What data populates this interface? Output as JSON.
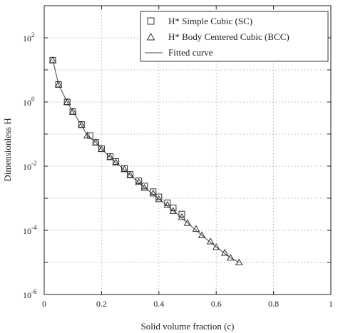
{
  "chart_data": {
    "type": "scatter",
    "title": "",
    "xlabel": "Solid volume fraction (c)",
    "ylabel": "Dimensionless H",
    "xlim": [
      0,
      1
    ],
    "ylim": [
      1e-06,
      1000
    ],
    "yscale": "log",
    "grid": true,
    "legend_position": "top-right",
    "x_ticks": [
      "0",
      "0.2",
      "0.4",
      "0.6",
      "0.8",
      "1"
    ],
    "x_tick_values": [
      0,
      0.2,
      0.4,
      0.6,
      0.8,
      1
    ],
    "y_ticks": [
      {
        "base": "10",
        "exp": "-6",
        "value": 1e-06
      },
      {
        "base": "10",
        "exp": "-4",
        "value": 0.0001
      },
      {
        "base": "10",
        "exp": "-2",
        "value": 0.01
      },
      {
        "base": "10",
        "exp": "0",
        "value": 1
      },
      {
        "base": "10",
        "exp": "2",
        "value": 100
      }
    ],
    "series": [
      {
        "name": "H* Simple Cubic (SC)",
        "marker": "square",
        "x": [
          0.03,
          0.05,
          0.08,
          0.1,
          0.13,
          0.16,
          0.18,
          0.2,
          0.23,
          0.25,
          0.28,
          0.3,
          0.33,
          0.35,
          0.38,
          0.4,
          0.43,
          0.45,
          0.48
        ],
        "y": [
          20,
          3.5,
          1.0,
          0.5,
          0.2,
          0.09,
          0.055,
          0.035,
          0.02,
          0.014,
          0.0085,
          0.0055,
          0.0035,
          0.0024,
          0.0016,
          0.0011,
          0.00072,
          0.0005,
          0.00032
        ]
      },
      {
        "name": "H* Body Centered Cubic (BCC)",
        "marker": "triangle",
        "x": [
          0.03,
          0.05,
          0.08,
          0.1,
          0.13,
          0.15,
          0.18,
          0.2,
          0.23,
          0.25,
          0.28,
          0.3,
          0.33,
          0.35,
          0.38,
          0.4,
          0.43,
          0.45,
          0.48,
          0.5,
          0.53,
          0.55,
          0.58,
          0.6,
          0.63,
          0.65,
          0.68
        ],
        "y": [
          20,
          3.5,
          1.0,
          0.5,
          0.19,
          0.09,
          0.055,
          0.034,
          0.019,
          0.013,
          0.008,
          0.0052,
          0.0032,
          0.0021,
          0.0014,
          0.00093,
          0.00062,
          0.0004,
          0.00026,
          0.00017,
          0.00011,
          7e-05,
          4.5e-05,
          3e-05,
          2e-05,
          1.4e-05,
          1e-05
        ]
      },
      {
        "name": "Fitted curve",
        "marker": "line",
        "x": [
          0.03,
          0.05,
          0.08,
          0.1,
          0.13,
          0.15,
          0.18,
          0.2,
          0.25,
          0.3,
          0.35,
          0.4,
          0.45,
          0.5,
          0.55,
          0.6,
          0.65,
          0.68
        ],
        "y": [
          20,
          3.5,
          1.0,
          0.5,
          0.19,
          0.09,
          0.055,
          0.034,
          0.013,
          0.0053,
          0.0022,
          0.00095,
          0.00041,
          0.00017,
          7e-05,
          3e-05,
          1.4e-05,
          1e-05
        ]
      }
    ]
  }
}
